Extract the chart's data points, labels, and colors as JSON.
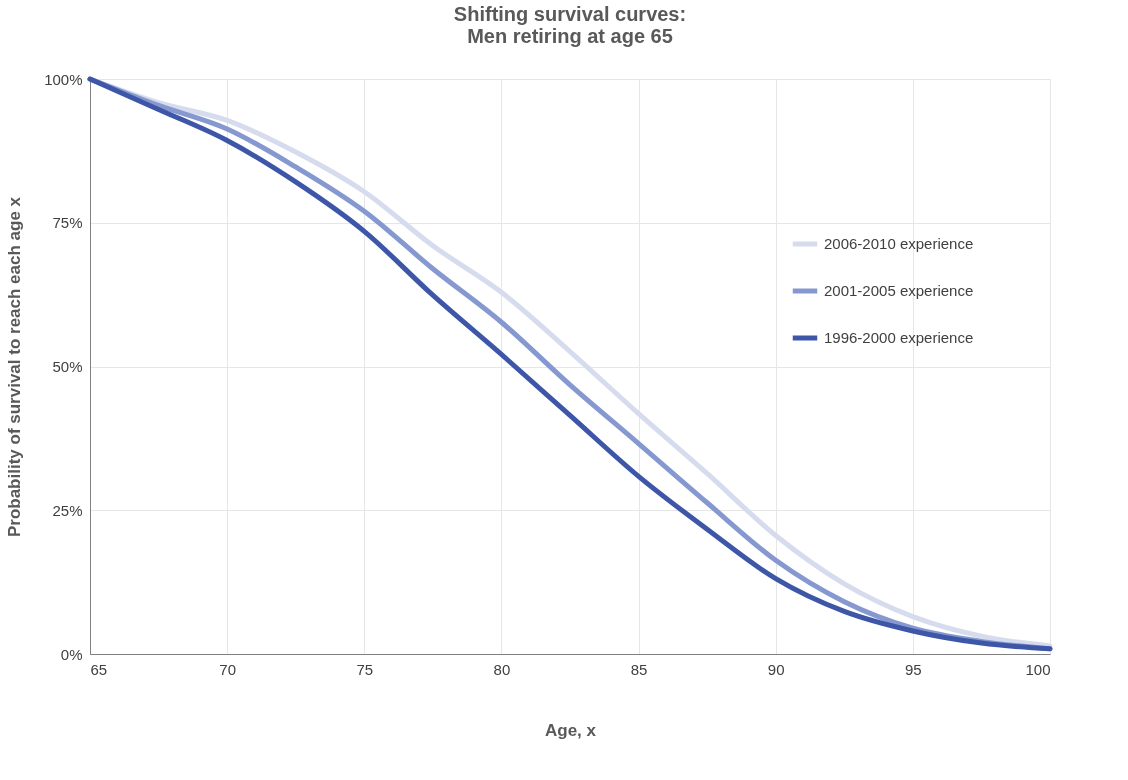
{
  "chart_data": {
    "type": "line",
    "title": "Shifting survival curves:\nMen retiring at age 65",
    "xlabel": "Age, x",
    "ylabel": "Probability of survival to reach each age x",
    "x": [
      65,
      67.5,
      70,
      72.5,
      75,
      77.5,
      80,
      82.5,
      85,
      87.5,
      90,
      92.5,
      95,
      97.5,
      100
    ],
    "series": [
      {
        "name": "2006-2010 experience",
        "color": "#d6dcee",
        "values": [
          100,
          95.9,
          92.8,
          87.3,
          80.4,
          71,
          62.9,
          52.6,
          41.8,
          31.4,
          20.6,
          12.2,
          6.5,
          3.1,
          1.4
        ]
      },
      {
        "name": "2001-2005 experience",
        "color": "#8598d0",
        "values": [
          100,
          95.4,
          91.3,
          84.7,
          77,
          67,
          57.7,
          46.8,
          36.6,
          26.3,
          16.3,
          9.1,
          4.5,
          2.2,
          0.9
        ]
      },
      {
        "name": "1996-2000 experience",
        "color": "#3d56a8",
        "values": [
          100,
          94.7,
          89.3,
          82.1,
          73.5,
          62.4,
          52.1,
          41.5,
          30.9,
          21.7,
          13.1,
          7.4,
          4.0,
          1.9,
          0.9
        ]
      }
    ],
    "xlim": [
      65,
      100
    ],
    "xticks": [
      65,
      70,
      75,
      80,
      85,
      90,
      95,
      100
    ],
    "ylim": [
      0,
      100
    ],
    "yticks": [
      {
        "value": 0,
        "label": "0%"
      },
      {
        "value": 25,
        "label": "25%"
      },
      {
        "value": 50,
        "label": "50%"
      },
      {
        "value": 75,
        "label": "75%"
      },
      {
        "value": 100,
        "label": "100%"
      }
    ],
    "grid": true,
    "legend": "right",
    "marker": "none",
    "line_style": "solid"
  }
}
